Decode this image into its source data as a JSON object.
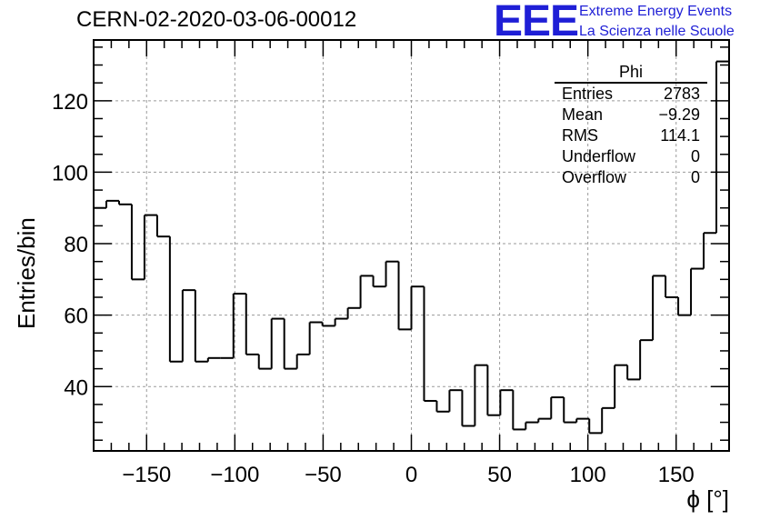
{
  "header": {
    "run_title": "CERN-02-2020-03-06-00012",
    "logo_mark": "EEE",
    "logo_line1": "Extreme Energy Events",
    "logo_line2": "La Scienza nelle Scuole"
  },
  "stats_box": {
    "title": "Phi",
    "rows": [
      {
        "label": "Entries",
        "value": "2783"
      },
      {
        "label": "Mean",
        "value": "−9.29"
      },
      {
        "label": "RMS",
        "value": "114.1"
      },
      {
        "label": "Underflow",
        "value": "0"
      },
      {
        "label": "Overflow",
        "value": "0"
      }
    ]
  },
  "chart_data": {
    "type": "histogram",
    "title": "CERN-02-2020-03-06-00012",
    "xlabel": "ϕ [°]",
    "ylabel": "Entries/bin",
    "xlim": [
      -180,
      180
    ],
    "ylim": [
      22,
      137
    ],
    "bin_width": 7.2,
    "bin_edges_start": -180,
    "values": [
      90,
      92,
      91,
      70,
      88,
      82,
      47,
      67,
      47,
      48,
      48,
      66,
      49,
      45,
      59,
      45,
      49,
      58,
      57,
      59,
      62,
      71,
      68,
      75,
      56,
      68,
      36,
      33,
      39,
      29,
      46,
      32,
      39,
      28,
      30,
      31,
      37,
      30,
      31,
      27,
      34,
      46,
      42,
      53,
      71,
      65,
      60,
      73,
      83,
      131
    ],
    "x_ticks": [
      -150,
      -100,
      -50,
      0,
      50,
      100,
      150
    ],
    "y_ticks": [
      40,
      60,
      80,
      100,
      120
    ],
    "grid": true,
    "line_color": "#000000",
    "grid_color": "#9a9a9a"
  }
}
